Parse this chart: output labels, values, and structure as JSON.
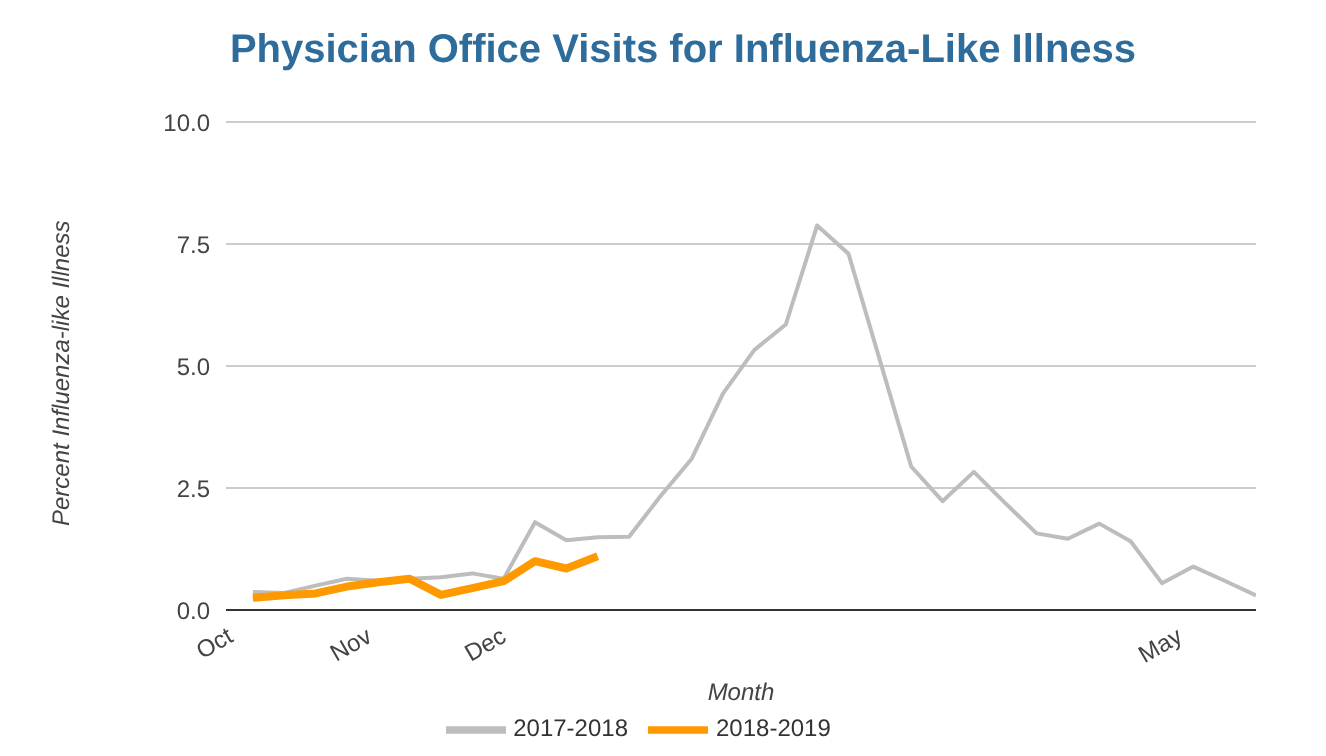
{
  "chart_data": {
    "type": "line",
    "title": "Physician Office Visits for Influenza-Like Illness",
    "xlabel": "Month",
    "ylabel": "Percent Influenza-like Illness",
    "x": [
      "2017-10-07",
      "2017-10-14",
      "2017-10-21",
      "2017-10-28",
      "2017-11-04",
      "2017-11-11",
      "2017-11-18",
      "2017-11-25",
      "2017-12-02",
      "2017-12-09",
      "2017-12-16",
      "2017-12-23",
      "2017-12-30",
      "2018-01-06",
      "2018-01-13",
      "2018-01-20",
      "2018-01-27",
      "2018-02-03",
      "2018-02-10",
      "2018-02-17",
      "2018-02-24",
      "2018-03-03",
      "2018-03-10",
      "2018-03-17",
      "2018-03-24",
      "2018-03-31",
      "2018-04-07",
      "2018-04-14",
      "2018-04-21",
      "2018-04-28",
      "2018-05-05",
      "2018-05-12",
      "2018-05-19"
    ],
    "series": [
      {
        "name": "2017-2018",
        "color": "#bdbdbd",
        "values": [
          0.37,
          0.35,
          0.5,
          0.64,
          0.6,
          0.64,
          0.67,
          0.75,
          0.64,
          1.8,
          1.43,
          1.49,
          1.5,
          2.33,
          3.1,
          4.44,
          5.33,
          5.85,
          7.88,
          7.3,
          5.12,
          2.94,
          2.23,
          2.83,
          2.19,
          1.57,
          1.46,
          1.77,
          1.41,
          0.55,
          0.89,
          0.6,
          0.3
        ]
      },
      {
        "name": "2018-2019",
        "color": "#ff9900",
        "values": [
          0.25,
          0.3,
          0.34,
          0.48,
          0.57,
          0.64,
          0.31,
          0.45,
          0.59,
          1.0,
          0.85,
          1.1,
          null,
          null,
          null,
          null,
          null,
          null,
          null,
          null,
          null,
          null,
          null,
          null,
          null,
          null,
          null,
          null,
          null,
          null,
          null,
          null,
          null
        ]
      }
    ],
    "xlim": [
      "2017-10-01",
      "2018-05-19"
    ],
    "xticks": [
      {
        "value": "2017-10-01",
        "label": "Oct"
      },
      {
        "value": "2017-11-01",
        "label": "Nov"
      },
      {
        "value": "2017-12-01",
        "label": "Dec"
      },
      {
        "value": "2018-05-01",
        "label": "May"
      }
    ],
    "ylim": [
      0,
      10
    ],
    "yticks": [
      {
        "value": 0,
        "label": "0.0"
      },
      {
        "value": 2.5,
        "label": "2.5"
      },
      {
        "value": 5,
        "label": "5.0"
      },
      {
        "value": 7.5,
        "label": "7.5"
      },
      {
        "value": 10,
        "label": "10.0"
      }
    ],
    "grid": "y",
    "legend": "bottom",
    "marker": "none",
    "line_style": "solid"
  }
}
